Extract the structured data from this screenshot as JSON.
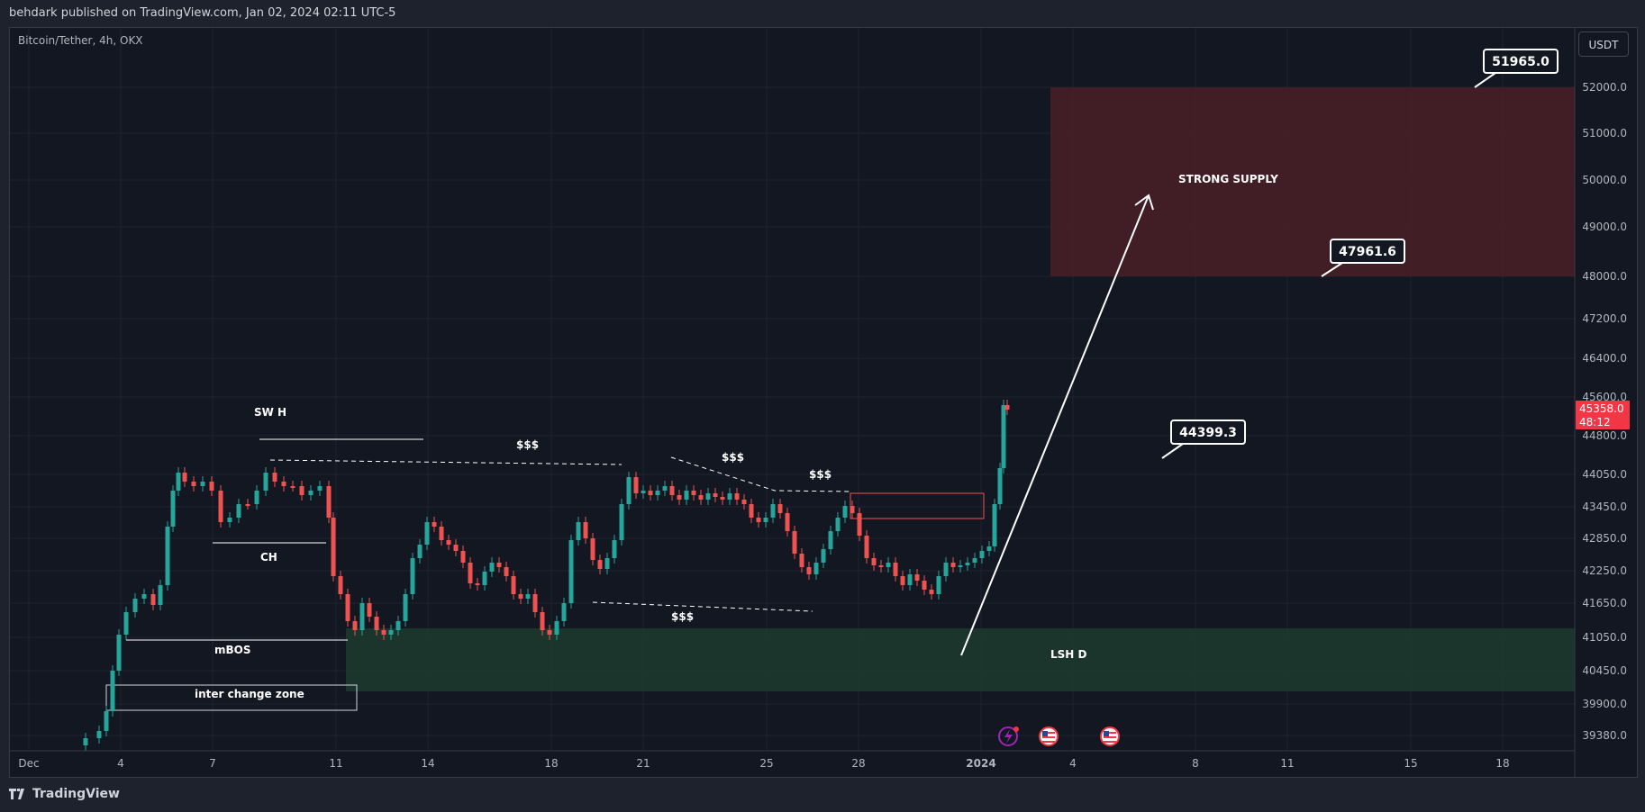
{
  "header": {
    "publisher_text": "behdark published on TradingView.com, Jan 02, 2024 02:11 UTC-5"
  },
  "symbol": {
    "label": "Bitcoin/Tether, 4h, OKX"
  },
  "currency": "USDT",
  "last_price": {
    "value": "45358.0",
    "countdown": "48:12"
  },
  "footer": {
    "brand": "TradingView"
  },
  "colors": {
    "up": "#26a69a",
    "down": "#ef5350",
    "supply_zone": "#4a1f27",
    "demand_zone": "#1d3a2e",
    "price_tag": "#f23645"
  },
  "chart_data": {
    "type": "candlestick",
    "y_axis_ticks": [
      "52000.0",
      "51000.0",
      "50000.0",
      "49000.0",
      "48000.0",
      "47200.0",
      "46400.0",
      "45600.0",
      "44800.0",
      "44050.0",
      "43450.0",
      "42850.0",
      "42250.0",
      "41650.0",
      "41050.0",
      "40450.0",
      "39900.0",
      "39380.0"
    ],
    "x_axis_ticks": [
      "Dec",
      "4",
      "7",
      "11",
      "14",
      "18",
      "21",
      "25",
      "28",
      "2024",
      "4",
      "8",
      "11",
      "15",
      "18"
    ],
    "annotations": {
      "sw_h": "SW H",
      "ch": "CH",
      "mbos": "mBOS",
      "inter_change_zone": "inter change zone",
      "liq1": "$$$",
      "liq2": "$$$",
      "liq3": "$$$",
      "liq4": "$$$",
      "strong_supply": "STRONG SUPPLY",
      "lsh_d": "LSH D"
    },
    "callouts": [
      "51965.0",
      "47961.6",
      "44399.3"
    ]
  }
}
